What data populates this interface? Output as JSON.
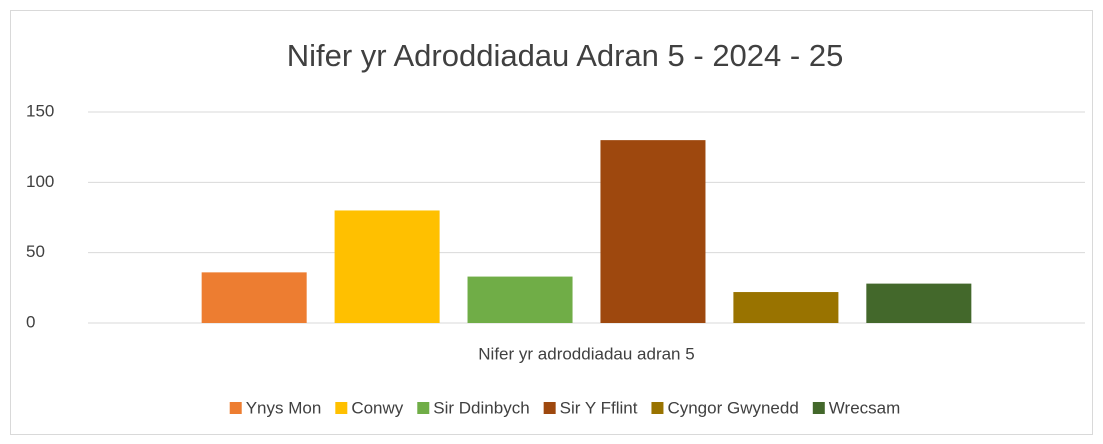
{
  "chart_data": {
    "type": "bar",
    "title": "Nifer yr Adroddiadau Adran 5 - 2024 - 25",
    "categories": [
      "Nifer yr adroddiadau adran 5"
    ],
    "series": [
      {
        "name": "Ynys Mon",
        "color": "#ed7d31",
        "values": [
          36
        ]
      },
      {
        "name": "Conwy",
        "color": "#ffc000",
        "values": [
          80
        ]
      },
      {
        "name": "Sir Ddinbych",
        "color": "#70ad47",
        "values": [
          33
        ]
      },
      {
        "name": "Sir Y Fflint",
        "color": "#9e480e",
        "values": [
          130
        ]
      },
      {
        "name": "Cyngor Gwynedd",
        "color": "#997300",
        "values": [
          22
        ]
      },
      {
        "name": "Wrecsam",
        "color": "#43682b",
        "values": [
          28
        ]
      }
    ],
    "ylim": [
      0,
      150
    ],
    "yticks": [
      0,
      50,
      100,
      150
    ],
    "grid": true,
    "legend": "bottom"
  }
}
